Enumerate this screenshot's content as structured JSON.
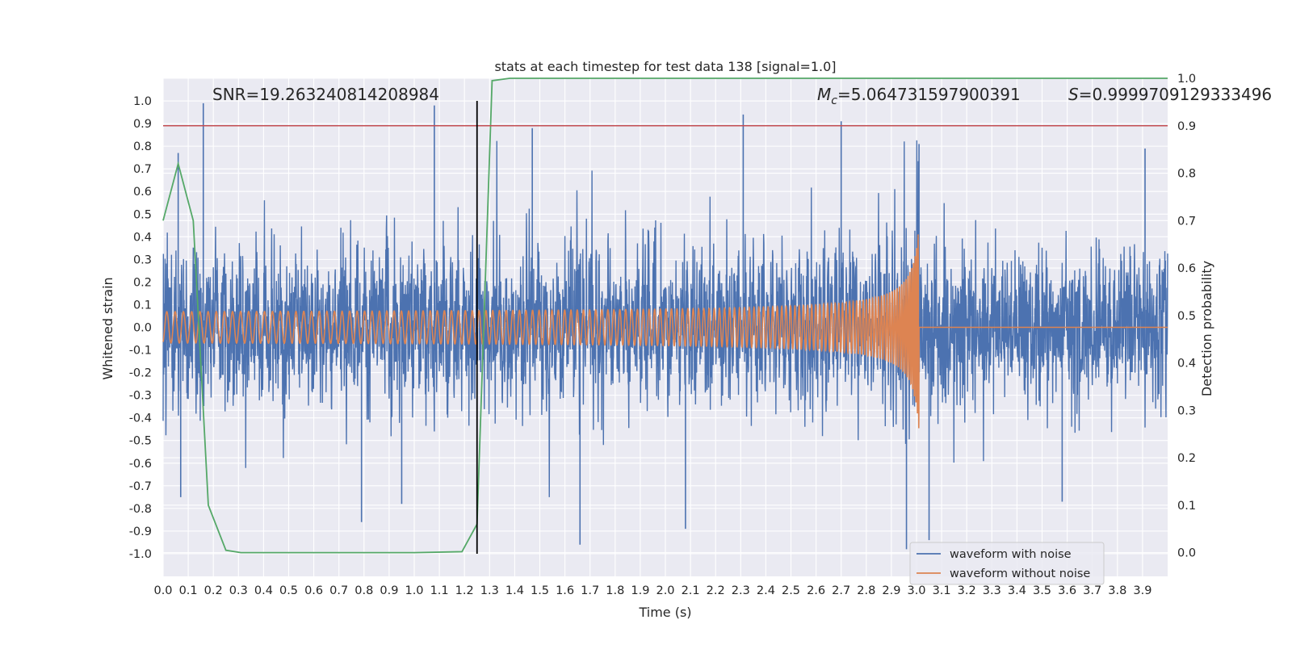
{
  "chart_data": {
    "type": "line",
    "title": "stats at each timestep for test data 138 [signal=1.0]",
    "xlabel": "Time (s)",
    "ylabel": "Whitened strain",
    "y2label": "Detection probability",
    "xlim": [
      0.0,
      4.0
    ],
    "ylim": [
      -1.1,
      1.1
    ],
    "y2lim": [
      -0.05,
      1.0
    ],
    "xticks": [
      "0.0",
      "0.1",
      "0.2",
      "0.3",
      "0.4",
      "0.5",
      "0.6",
      "0.7",
      "0.8",
      "0.9",
      "1.0",
      "1.1",
      "1.2",
      "1.3",
      "1.4",
      "1.5",
      "1.6",
      "1.7",
      "1.8",
      "1.9",
      "2.0",
      "2.1",
      "2.2",
      "2.3",
      "2.4",
      "2.5",
      "2.6",
      "2.7",
      "2.8",
      "2.9",
      "3.0",
      "3.1",
      "3.2",
      "3.3",
      "3.4",
      "3.5",
      "3.6",
      "3.7",
      "3.8",
      "3.9"
    ],
    "yticks": [
      "1.0",
      "0.9",
      "0.8",
      "0.7",
      "0.6",
      "0.5",
      "0.4",
      "0.3",
      "0.2",
      "0.1",
      "0.0",
      "-0.1",
      "-0.2",
      "-0.3",
      "-0.4",
      "-0.5",
      "-0.6",
      "-0.7",
      "-0.8",
      "-0.9",
      "-1.0"
    ],
    "y2ticks": [
      "1.0",
      "0.9",
      "0.8",
      "0.7",
      "0.6",
      "0.5",
      "0.4",
      "0.3",
      "0.2",
      "0.1",
      "0.0"
    ],
    "annotations": {
      "snr": "SNR=19.263240814208984",
      "mc_symbol": "M",
      "mc_subscript": "c",
      "mc_value": "=5.064731597900391",
      "s_symbol": "S",
      "s_value": "=0.9999709129333496"
    },
    "threshold": {
      "axis": "right",
      "value": 0.9,
      "color": "#c44e52"
    },
    "vertical_marker": {
      "x": 1.25,
      "y_from": -1.0,
      "y_to": 1.0,
      "color": "#000000"
    },
    "grid": true,
    "legend": {
      "placement": "lower-right"
    },
    "series": [
      {
        "name": "waveform with noise",
        "color": "#4c72b0",
        "kind": "noise",
        "typical_amplitude": 0.2,
        "extremes": [
          {
            "x": 0.16,
            "y": 0.99
          },
          {
            "x": 0.07,
            "y": -0.75
          },
          {
            "x": 0.06,
            "y": 0.77
          },
          {
            "x": 0.79,
            "y": -0.86
          },
          {
            "x": 1.08,
            "y": 0.98
          },
          {
            "x": 0.95,
            "y": -0.78
          },
          {
            "x": 1.47,
            "y": 0.88
          },
          {
            "x": 1.66,
            "y": -0.96
          },
          {
            "x": 2.08,
            "y": -0.89
          },
          {
            "x": 2.31,
            "y": 0.94
          },
          {
            "x": 2.7,
            "y": 0.91
          },
          {
            "x": 2.96,
            "y": -0.98
          },
          {
            "x": 3.01,
            "y": 0.81
          },
          {
            "x": 3.05,
            "y": -0.94
          },
          {
            "x": 3.58,
            "y": -0.77
          },
          {
            "x": 3.91,
            "y": 0.79
          }
        ]
      },
      {
        "name": "waveform without noise",
        "color": "#dd8452",
        "kind": "chirp",
        "start_amplitude": 0.06,
        "peak_amplitude": 0.46,
        "merger_time": 3.01,
        "start_frequency_hz": 30
      },
      {
        "name": "",
        "axis": "right",
        "color": "#55a868",
        "x": [
          0.0,
          0.06,
          0.12,
          0.18,
          0.25,
          0.31,
          0.5,
          1.0,
          1.19,
          1.25,
          1.31,
          1.38,
          2.0,
          3.0,
          4.0
        ],
        "values": [
          0.7,
          0.82,
          0.7,
          0.1,
          0.005,
          0.0,
          0.0,
          0.0,
          0.002,
          0.06,
          0.995,
          1.0,
          1.0,
          1.0,
          1.0
        ]
      }
    ]
  }
}
